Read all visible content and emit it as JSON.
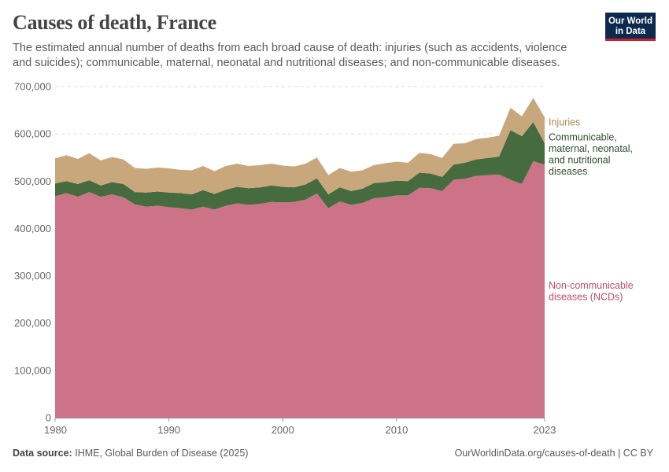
{
  "header": {
    "title": "Causes of death, France",
    "subtitle": "The estimated annual number of deaths from each broad cause of death: injuries (such as accidents, violence and suicides); communicable, maternal, neonatal and nutritional diseases; and non-communicable diseases."
  },
  "logo": {
    "line1": "Our World",
    "line2": "in Data"
  },
  "footer": {
    "source_label": "Data source:",
    "source_text": "IHME, Global Burden of Disease (2025)",
    "url_text": "OurWorldinData.org/causes-of-death | CC BY"
  },
  "colors": {
    "ncd": "#cc7387",
    "communicable": "#456b3e",
    "injuries": "#c9a77c",
    "ncd_label": "#c24d66",
    "communicable_label": "#2f4f2a",
    "injuries_label": "#b08a55"
  },
  "chart_data": {
    "type": "area",
    "stacked": true,
    "title": "Causes of death, France",
    "xlabel": "",
    "ylabel": "",
    "xlim": [
      1980,
      2023
    ],
    "ylim": [
      0,
      700000
    ],
    "y_ticks": [
      0,
      100000,
      200000,
      300000,
      400000,
      500000,
      600000,
      700000
    ],
    "y_tick_labels": [
      "0",
      "100,000",
      "200,000",
      "300,000",
      "400,000",
      "500,000",
      "600,000",
      "700,000"
    ],
    "x_ticks": [
      1980,
      1990,
      2000,
      2010,
      2023
    ],
    "x_tick_labels": [
      "1980",
      "1990",
      "2000",
      "2010",
      "2023"
    ],
    "grid": "horizontal-dashed",
    "legend": "right-inline",
    "x": [
      1980,
      1981,
      1982,
      1983,
      1984,
      1985,
      1986,
      1987,
      1988,
      1989,
      1990,
      1991,
      1992,
      1993,
      1994,
      1995,
      1996,
      1997,
      1998,
      1999,
      2000,
      2001,
      2002,
      2003,
      2004,
      2005,
      2006,
      2007,
      2008,
      2009,
      2010,
      2011,
      2012,
      2013,
      2014,
      2015,
      2016,
      2017,
      2018,
      2019,
      2020,
      2021,
      2022,
      2023
    ],
    "series": [
      {
        "name": "Non-communicable diseases (NCDs)",
        "label_lines": [
          "Non-communicable",
          "diseases (NCDs)"
        ],
        "values": [
          468000,
          475000,
          467000,
          477000,
          467000,
          472000,
          466000,
          451000,
          446000,
          448000,
          445000,
          443000,
          440000,
          446000,
          440000,
          448000,
          453000,
          450000,
          452000,
          456000,
          455000,
          456000,
          461000,
          474000,
          443000,
          457000,
          450000,
          454000,
          464000,
          466000,
          470000,
          470000,
          486000,
          485000,
          479000,
          503000,
          505000,
          511000,
          513000,
          514000,
          503000,
          494000,
          542000,
          535000
        ]
      },
      {
        "name": "Communicable, maternal, neonatal, and nutritional diseases",
        "label_lines": [
          "Communicable,",
          "maternal, neonatal,",
          "and nutritional",
          "diseases"
        ],
        "values": [
          27000,
          25000,
          27000,
          25000,
          24000,
          26000,
          28000,
          26000,
          30000,
          30000,
          31000,
          32000,
          32000,
          35000,
          33000,
          34000,
          35000,
          35000,
          35000,
          35000,
          33000,
          31000,
          32000,
          32000,
          29000,
          30000,
          29000,
          30000,
          32000,
          32000,
          31000,
          30000,
          32000,
          31000,
          30000,
          32000,
          34000,
          35000,
          36000,
          38000,
          105000,
          101000,
          83000,
          45000
        ]
      },
      {
        "name": "Injuries",
        "label_lines": [
          "Injuries"
        ],
        "values": [
          53000,
          55000,
          53000,
          57000,
          53000,
          53000,
          52000,
          51000,
          50000,
          51000,
          51000,
          49000,
          51000,
          51000,
          48000,
          50000,
          49000,
          47000,
          47000,
          46000,
          45000,
          44000,
          44000,
          44000,
          41000,
          41000,
          41000,
          39000,
          38000,
          40000,
          40000,
          39000,
          42000,
          41000,
          40000,
          44000,
          41000,
          43000,
          43000,
          44000,
          47000,
          42000,
          51000,
          55000
        ]
      }
    ]
  }
}
